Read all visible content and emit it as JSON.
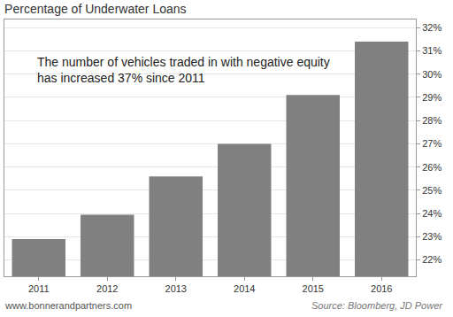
{
  "chart_data": {
    "type": "bar",
    "title": "Percentage of Underwater Loans",
    "annotation": [
      "The number of vehicles traded in with negative equity",
      "has increased 37% since 2011"
    ],
    "credit": "www.bonnerandpartners.com",
    "source": "Source: Bloomberg, JD Power",
    "categories": [
      "2011",
      "2012",
      "2013",
      "2014",
      "2015",
      "2016"
    ],
    "values": [
      22.9,
      23.95,
      25.6,
      27.0,
      29.1,
      31.4
    ],
    "color": "#808080",
    "ylim": [
      21.3,
      32.35
    ],
    "yticks": [
      {
        "value": 22,
        "label": "22%"
      },
      {
        "value": 23,
        "label": "23%"
      },
      {
        "value": 24,
        "label": "24%"
      },
      {
        "value": 25,
        "label": "25%"
      },
      {
        "value": 26,
        "label": "26%"
      },
      {
        "value": 27,
        "label": "27%"
      },
      {
        "value": 28,
        "label": "28%"
      },
      {
        "value": 29,
        "label": "29%"
      },
      {
        "value": 30,
        "label": "30%"
      },
      {
        "value": 31,
        "label": "31%"
      },
      {
        "value": 32,
        "label": "32%"
      }
    ],
    "grid": true
  }
}
